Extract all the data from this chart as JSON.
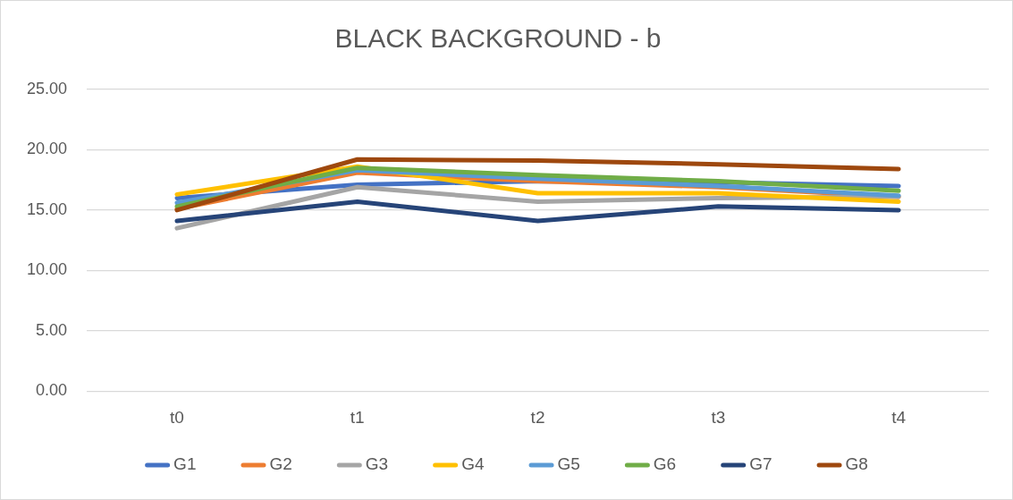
{
  "chart_data": {
    "type": "line",
    "title": "BLACK BACKGROUND - b",
    "categories": [
      "t0",
      "t1",
      "t2",
      "t3",
      "t4"
    ],
    "series": [
      {
        "name": "G1",
        "color": "#4472c4",
        "values": [
          16.0,
          17.1,
          17.4,
          17.3,
          17.0
        ]
      },
      {
        "name": "G2",
        "color": "#ed7d31",
        "values": [
          15.1,
          18.1,
          17.4,
          16.9,
          16.1
        ]
      },
      {
        "name": "G3",
        "color": "#a5a5a5",
        "values": [
          13.5,
          16.9,
          15.7,
          16.0,
          16.1
        ]
      },
      {
        "name": "G4",
        "color": "#ffc000",
        "values": [
          16.3,
          18.6,
          16.4,
          16.4,
          15.7
        ]
      },
      {
        "name": "G5",
        "color": "#5b9bd5",
        "values": [
          15.6,
          18.3,
          17.6,
          17.0,
          16.2
        ]
      },
      {
        "name": "G6",
        "color": "#70ad47",
        "values": [
          15.3,
          18.5,
          17.9,
          17.4,
          16.6
        ]
      },
      {
        "name": "G7",
        "color": "#264478",
        "values": [
          14.1,
          15.7,
          14.1,
          15.3,
          15.0
        ]
      },
      {
        "name": "G8",
        "color": "#9e480e",
        "values": [
          15.0,
          19.2,
          19.1,
          18.8,
          18.4
        ]
      }
    ],
    "ylim": [
      0,
      25
    ],
    "yticks": [
      {
        "value": 0,
        "label": "0.00"
      },
      {
        "value": 5,
        "label": "5.00"
      },
      {
        "value": 10,
        "label": "10.00"
      },
      {
        "value": 15,
        "label": "15.00"
      },
      {
        "value": 20,
        "label": "20.00"
      },
      {
        "value": 25,
        "label": "25.00"
      }
    ],
    "grid": "y",
    "legend": "bottom",
    "marker": "none",
    "line_style": "solid"
  }
}
